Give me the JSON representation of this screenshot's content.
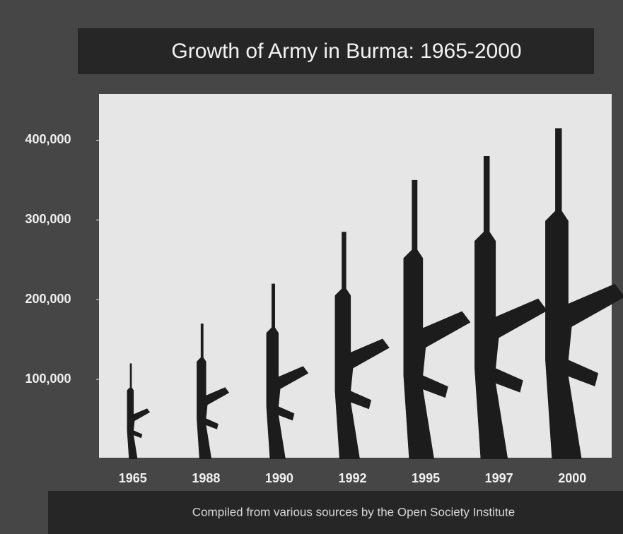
{
  "chart_data": {
    "type": "pictograph",
    "title": "Growth of Army in Burma: 1965-2000",
    "categories": [
      "1965",
      "1988",
      "1990",
      "1992",
      "1995",
      "1997",
      "2000"
    ],
    "values": [
      120000,
      170000,
      220000,
      285000,
      350000,
      380000,
      415000
    ],
    "color": "#1c1c1c",
    "ylim": [
      0,
      458000
    ],
    "yticks": [
      {
        "value": 100000,
        "label": "100,000"
      },
      {
        "value": 200000,
        "label": "200,000"
      },
      {
        "value": 300000,
        "label": "300,000"
      },
      {
        "value": 400000,
        "label": "400,000"
      }
    ],
    "source": "Compiled from various sources by the Open Society Institute"
  }
}
